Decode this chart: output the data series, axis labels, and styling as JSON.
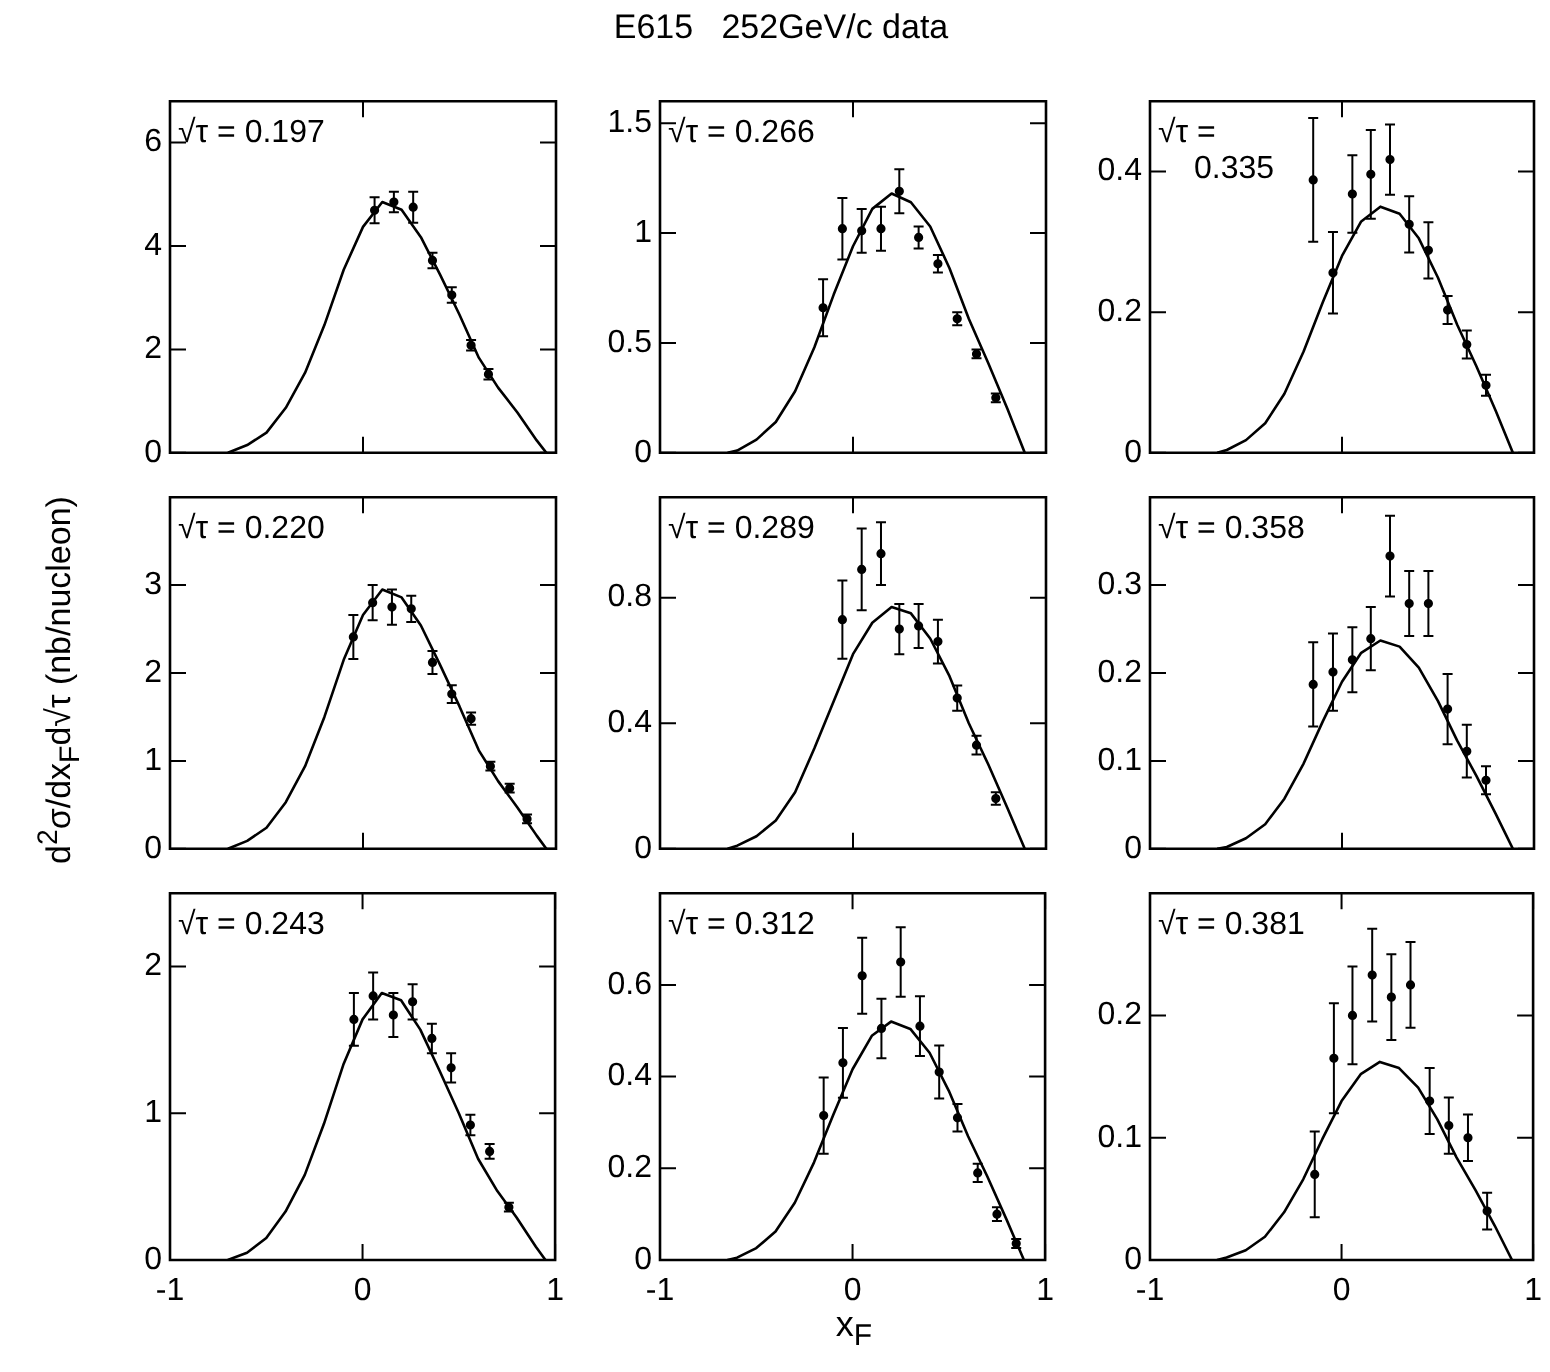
{
  "chart_data": [
    {
      "type": "scatter",
      "annotations": [
        "√τ = 0.197"
      ],
      "xlim": [
        -1,
        1
      ],
      "xticks": [
        -1,
        0,
        1
      ],
      "ylim": [
        0,
        6.8
      ],
      "yticks": [
        0,
        2,
        4,
        6
      ],
      "tick_labels": "y",
      "legend": false,
      "series": [
        {
          "type": "scatter",
          "color": "#000000",
          "marker": "circle",
          "x": [
            0.06,
            0.16,
            0.26,
            0.36,
            0.46,
            0.56,
            0.65
          ],
          "values": [
            4.69,
            4.85,
            4.75,
            3.72,
            3.05,
            2.08,
            1.52
          ],
          "errors": [
            0.25,
            0.2,
            0.3,
            0.15,
            0.15,
            0.1,
            0.1
          ]
        },
        {
          "type": "line",
          "color": "#000000",
          "marker": "none",
          "x": [
            -0.7,
            -0.6,
            -0.5,
            -0.4,
            -0.3,
            -0.2,
            -0.1,
            0,
            0.1,
            0.2,
            0.3,
            0.4,
            0.5,
            0.6,
            0.7,
            0.8,
            0.9,
            0.95
          ],
          "values": [
            0,
            0.15,
            0.39,
            0.87,
            1.55,
            2.47,
            3.54,
            4.37,
            4.85,
            4.7,
            4.17,
            3.44,
            2.67,
            1.84,
            1.26,
            0.78,
            0.24,
            0
          ]
        }
      ]
    },
    {
      "type": "scatter",
      "title": "E615   252GeV/c data",
      "annotations": [
        "√τ = 0.266"
      ],
      "xlim": [
        -1,
        1
      ],
      "xticks": [
        -1,
        0,
        1
      ],
      "ylim": [
        0,
        1.6
      ],
      "yticks": [
        0,
        0.5,
        1,
        1.5
      ],
      "tick_labels": "y",
      "legend": false,
      "series": [
        {
          "type": "scatter",
          "color": "#000000",
          "marker": "circle",
          "x": [
            -0.155,
            -0.055,
            0.045,
            0.145,
            0.24,
            0.34,
            0.44,
            0.54,
            0.64,
            0.74
          ],
          "values": [
            0.66,
            1.02,
            1.01,
            1.02,
            1.19,
            0.98,
            0.86,
            0.61,
            0.45,
            0.25
          ],
          "errors": [
            0.13,
            0.14,
            0.1,
            0.1,
            0.1,
            0.05,
            0.04,
            0.03,
            0.02,
            0.02
          ]
        },
        {
          "type": "line",
          "color": "#000000",
          "marker": "none",
          "x": [
            -0.65,
            -0.6,
            -0.5,
            -0.4,
            -0.3,
            -0.2,
            -0.1,
            0,
            0.1,
            0.2,
            0.3,
            0.4,
            0.5,
            0.6,
            0.7,
            0.8,
            0.89
          ],
          "values": [
            0,
            0.01,
            0.06,
            0.14,
            0.28,
            0.48,
            0.72,
            0.94,
            1.11,
            1.18,
            1.14,
            1.03,
            0.84,
            0.61,
            0.41,
            0.2,
            0
          ]
        }
      ]
    },
    {
      "type": "scatter",
      "annotations": [
        "√τ =\n0.335"
      ],
      "xlim": [
        -1,
        1
      ],
      "xticks": [
        -1,
        0,
        1
      ],
      "ylim": [
        0,
        0.5
      ],
      "yticks": [
        0,
        0.2,
        0.4
      ],
      "tick_labels": "y",
      "legend": false,
      "series": [
        {
          "type": "scatter",
          "color": "#000000",
          "marker": "circle",
          "x": [
            -0.15,
            -0.047,
            0.054,
            0.15,
            0.25,
            0.35,
            0.45,
            0.55,
            0.65,
            0.75
          ],
          "values": [
            0.388,
            0.256,
            0.368,
            0.396,
            0.417,
            0.325,
            0.288,
            0.203,
            0.154,
            0.096
          ],
          "errors": [
            0.088,
            0.058,
            0.055,
            0.063,
            0.05,
            0.04,
            0.04,
            0.02,
            0.02,
            0.015
          ]
        },
        {
          "type": "line",
          "color": "#000000",
          "marker": "none",
          "x": [
            -0.65,
            -0.6,
            -0.5,
            -0.4,
            -0.3,
            -0.2,
            -0.1,
            0,
            0.1,
            0.2,
            0.3,
            0.4,
            0.5,
            0.6,
            0.7,
            0.8,
            0.89
          ],
          "values": [
            0,
            0.004,
            0.018,
            0.042,
            0.084,
            0.144,
            0.214,
            0.28,
            0.329,
            0.35,
            0.34,
            0.305,
            0.249,
            0.182,
            0.123,
            0.06,
            0
          ]
        }
      ]
    },
    {
      "type": "scatter",
      "ylabel": "d$^{2}$σ/dx$_{F}$d√τ (nb/nucleon)",
      "annotations": [
        "√τ = 0.220"
      ],
      "xlim": [
        -1,
        1
      ],
      "xticks": [
        -1,
        0,
        1
      ],
      "ylim": [
        0,
        4
      ],
      "yticks": [
        0,
        1,
        2,
        3
      ],
      "tick_labels": "y",
      "legend": false,
      "series": [
        {
          "type": "scatter",
          "color": "#000000",
          "marker": "circle",
          "x": [
            -0.05,
            0.05,
            0.15,
            0.25,
            0.36,
            0.46,
            0.56,
            0.66,
            0.76,
            0.85
          ],
          "values": [
            2.41,
            2.8,
            2.75,
            2.73,
            2.12,
            1.76,
            1.48,
            0.94,
            0.69,
            0.34
          ],
          "errors": [
            0.25,
            0.2,
            0.2,
            0.15,
            0.13,
            0.1,
            0.07,
            0.05,
            0.05,
            0.05
          ]
        },
        {
          "type": "line",
          "color": "#000000",
          "marker": "none",
          "x": [
            -0.7,
            -0.6,
            -0.5,
            -0.4,
            -0.3,
            -0.2,
            -0.1,
            0,
            0.1,
            0.2,
            0.3,
            0.4,
            0.5,
            0.6,
            0.7,
            0.8,
            0.9,
            0.95
          ],
          "values": [
            0,
            0.09,
            0.24,
            0.53,
            0.94,
            1.5,
            2.15,
            2.66,
            2.95,
            2.86,
            2.54,
            2.09,
            1.62,
            1.12,
            0.77,
            0.47,
            0.15,
            0
          ]
        }
      ]
    },
    {
      "type": "scatter",
      "annotations": [
        "√τ = 0.289"
      ],
      "xlim": [
        -1,
        1
      ],
      "xticks": [
        -1,
        0,
        1
      ],
      "ylim": [
        0,
        1.12
      ],
      "yticks": [
        0,
        0.4,
        0.8
      ],
      "tick_labels": "y",
      "legend": false,
      "series": [
        {
          "type": "scatter",
          "color": "#000000",
          "marker": "circle",
          "x": [
            -0.055,
            0.045,
            0.145,
            0.24,
            0.34,
            0.44,
            0.54,
            0.64,
            0.74
          ],
          "values": [
            0.73,
            0.89,
            0.94,
            0.7,
            0.71,
            0.66,
            0.48,
            0.33,
            0.16
          ],
          "errors": [
            0.125,
            0.13,
            0.1,
            0.08,
            0.07,
            0.07,
            0.04,
            0.03,
            0.02
          ]
        },
        {
          "type": "line",
          "color": "#000000",
          "marker": "none",
          "x": [
            -0.65,
            -0.6,
            -0.5,
            -0.4,
            -0.3,
            -0.2,
            -0.1,
            0,
            0.1,
            0.2,
            0.3,
            0.4,
            0.5,
            0.6,
            0.7,
            0.8,
            0.89
          ],
          "values": [
            0,
            0.01,
            0.04,
            0.09,
            0.18,
            0.32,
            0.47,
            0.62,
            0.72,
            0.77,
            0.75,
            0.67,
            0.55,
            0.4,
            0.27,
            0.13,
            0
          ]
        }
      ]
    },
    {
      "type": "scatter",
      "annotations": [
        "√τ = 0.358"
      ],
      "xlim": [
        -1,
        1
      ],
      "xticks": [
        -1,
        0,
        1
      ],
      "ylim": [
        0,
        0.4
      ],
      "yticks": [
        0,
        0.1,
        0.2,
        0.3
      ],
      "tick_labels": "y",
      "legend": false,
      "series": [
        {
          "type": "scatter",
          "color": "#000000",
          "marker": "circle",
          "x": [
            -0.15,
            -0.047,
            0.054,
            0.15,
            0.25,
            0.35,
            0.45,
            0.55,
            0.65,
            0.75
          ],
          "values": [
            0.187,
            0.201,
            0.215,
            0.239,
            0.333,
            0.279,
            0.279,
            0.159,
            0.111,
            0.078
          ],
          "errors": [
            0.048,
            0.044,
            0.037,
            0.036,
            0.046,
            0.037,
            0.037,
            0.04,
            0.03,
            0.016
          ]
        },
        {
          "type": "line",
          "color": "#000000",
          "marker": "none",
          "x": [
            -0.65,
            -0.6,
            -0.5,
            -0.4,
            -0.3,
            -0.2,
            -0.1,
            0,
            0.1,
            0.2,
            0.3,
            0.4,
            0.5,
            0.6,
            0.7,
            0.8,
            0.89
          ],
          "values": [
            0,
            0.002,
            0.012,
            0.028,
            0.057,
            0.097,
            0.145,
            0.19,
            0.223,
            0.237,
            0.23,
            0.206,
            0.168,
            0.123,
            0.083,
            0.04,
            0
          ]
        }
      ]
    },
    {
      "type": "scatter",
      "annotations": [
        "√τ = 0.243"
      ],
      "xlim": [
        -1,
        1
      ],
      "xticks": [
        -1,
        0,
        1
      ],
      "ylim": [
        0,
        2.5
      ],
      "yticks": [
        0,
        1,
        2
      ],
      "legend": false,
      "series": [
        {
          "type": "scatter",
          "color": "#000000",
          "marker": "circle",
          "x": [
            -0.045,
            0.055,
            0.16,
            0.26,
            0.36,
            0.46,
            0.56,
            0.66,
            0.76
          ],
          "values": [
            1.64,
            1.8,
            1.67,
            1.76,
            1.51,
            1.31,
            0.92,
            0.74,
            0.36
          ],
          "errors": [
            0.18,
            0.16,
            0.15,
            0.12,
            0.1,
            0.1,
            0.07,
            0.05,
            0.03
          ]
        },
        {
          "type": "line",
          "color": "#000000",
          "marker": "none",
          "x": [
            -0.7,
            -0.6,
            -0.5,
            -0.4,
            -0.3,
            -0.2,
            -0.1,
            0,
            0.1,
            0.2,
            0.3,
            0.4,
            0.5,
            0.6,
            0.7,
            0.8,
            0.9,
            0.95
          ],
          "values": [
            0,
            0.05,
            0.15,
            0.33,
            0.58,
            0.93,
            1.33,
            1.64,
            1.82,
            1.77,
            1.57,
            1.29,
            1,
            0.69,
            0.47,
            0.29,
            0.09,
            0
          ]
        }
      ]
    },
    {
      "type": "scatter",
      "xlabel": "x$_{F}$",
      "annotations": [
        "√τ = 0.312"
      ],
      "xlim": [
        -1,
        1
      ],
      "xticks": [
        -1,
        0,
        1
      ],
      "ylim": [
        0,
        0.8
      ],
      "yticks": [
        0,
        0.2,
        0.4,
        0.6
      ],
      "legend": false,
      "series": [
        {
          "type": "scatter",
          "color": "#000000",
          "marker": "circle",
          "x": [
            -0.15,
            -0.05,
            0.05,
            0.15,
            0.25,
            0.35,
            0.45,
            0.545,
            0.65,
            0.75,
            0.85
          ],
          "values": [
            0.315,
            0.43,
            0.62,
            0.505,
            0.65,
            0.51,
            0.41,
            0.31,
            0.19,
            0.1,
            0.036
          ],
          "errors": [
            0.083,
            0.076,
            0.083,
            0.065,
            0.076,
            0.065,
            0.058,
            0.03,
            0.02,
            0.015,
            0.01
          ]
        },
        {
          "type": "line",
          "color": "#000000",
          "marker": "none",
          "x": [
            -0.65,
            -0.6,
            -0.5,
            -0.4,
            -0.3,
            -0.2,
            -0.1,
            0,
            0.1,
            0.2,
            0.3,
            0.4,
            0.5,
            0.6,
            0.7,
            0.8,
            0.89
          ],
          "values": [
            0,
            0.005,
            0.026,
            0.062,
            0.125,
            0.213,
            0.317,
            0.416,
            0.489,
            0.52,
            0.504,
            0.452,
            0.369,
            0.27,
            0.182,
            0.088,
            0
          ]
        }
      ]
    },
    {
      "type": "scatter",
      "annotations": [
        "√τ = 0.381"
      ],
      "xlim": [
        -1,
        1
      ],
      "xticks": [
        -1,
        0,
        1
      ],
      "ylim": [
        0,
        0.3
      ],
      "yticks": [
        0,
        0.1,
        0.2
      ],
      "legend": false,
      "series": [
        {
          "type": "scatter",
          "color": "#000000",
          "marker": "circle",
          "x": [
            -0.14,
            -0.04,
            0.057,
            0.16,
            0.26,
            0.36,
            0.46,
            0.56,
            0.66,
            0.76
          ],
          "values": [
            0.07,
            0.165,
            0.2,
            0.233,
            0.215,
            0.225,
            0.13,
            0.11,
            0.1,
            0.04
          ],
          "errors": [
            0.035,
            0.045,
            0.04,
            0.038,
            0.035,
            0.035,
            0.027,
            0.023,
            0.019,
            0.015
          ]
        },
        {
          "type": "line",
          "color": "#000000",
          "marker": "none",
          "x": [
            -0.65,
            -0.6,
            -0.5,
            -0.4,
            -0.3,
            -0.2,
            -0.1,
            0,
            0.1,
            0.2,
            0.3,
            0.4,
            0.5,
            0.6,
            0.7,
            0.8,
            0.89
          ],
          "values": [
            0,
            0.002,
            0.008,
            0.019,
            0.039,
            0.066,
            0.099,
            0.13,
            0.152,
            0.162,
            0.157,
            0.141,
            0.115,
            0.084,
            0.057,
            0.028,
            0
          ]
        }
      ]
    }
  ]
}
